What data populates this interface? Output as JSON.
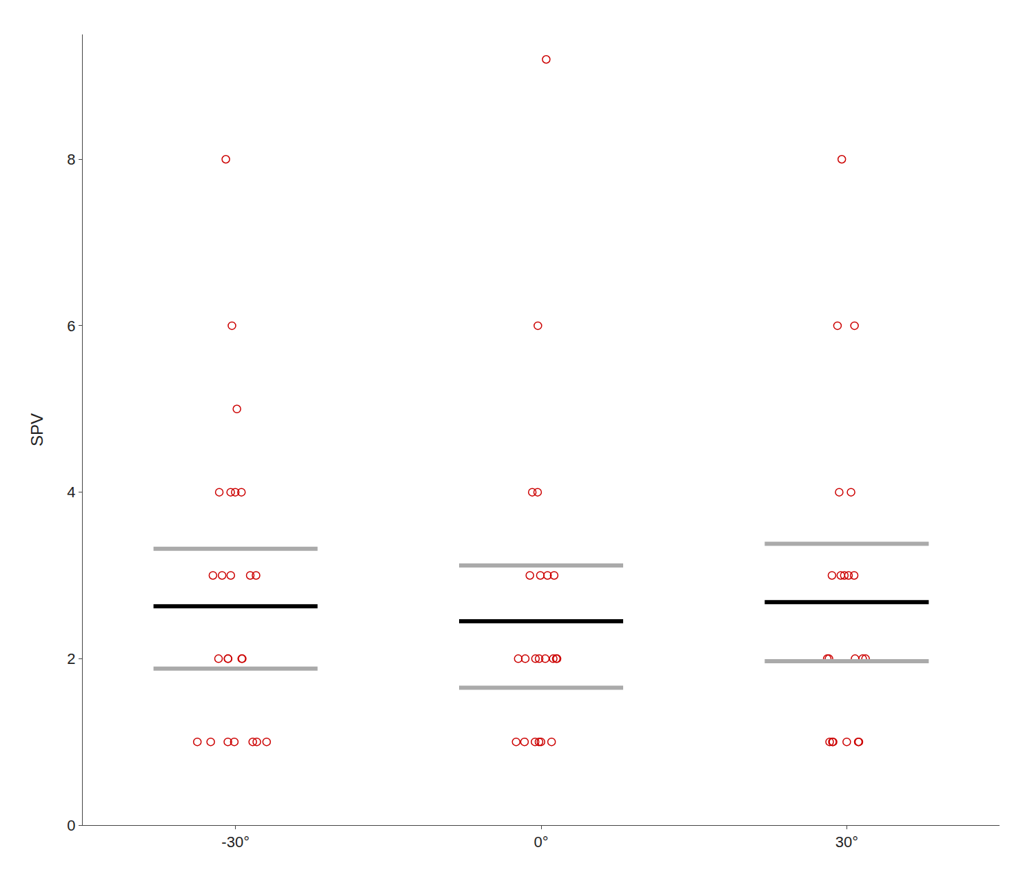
{
  "chart_data": {
    "type": "strip",
    "ylabel": "SPV",
    "categories": [
      "-30°",
      "0°",
      "30°"
    ],
    "series": [
      {
        "type": "strip",
        "color": "#cc0000",
        "marker": "circle-open",
        "values": [
          [
            8.0,
            4.0,
            6.0,
            5.0,
            4.0,
            4.0,
            4.0,
            3.0,
            3.0,
            3.0,
            3.0,
            3.0,
            2.0,
            2.0,
            2.0,
            2.0,
            2.0,
            1.0,
            1.0,
            1.0,
            1.0,
            1.0,
            1.0,
            1.0
          ],
          [
            9.2,
            6.0,
            4.0,
            4.0,
            3.0,
            3.0,
            3.0,
            3.0,
            2.0,
            2.0,
            2.0,
            2.0,
            2.0,
            2.0,
            2.0,
            2.0,
            1.0,
            1.0,
            1.0,
            1.0,
            1.0,
            1.0
          ],
          [
            8.0,
            6.0,
            6.0,
            4.0,
            4.0,
            3.0,
            3.0,
            3.0,
            3.0,
            3.0,
            2.0,
            2.0,
            2.0,
            2.0,
            2.0,
            1.0,
            1.0,
            1.0,
            1.0,
            1.0,
            1.0
          ]
        ]
      },
      {
        "type": "tick",
        "color": "#aaaaaa",
        "marker": "line-ew",
        "values": [
          3.32,
          3.12,
          3.38
        ]
      },
      {
        "type": "tick",
        "color": "#aaaaaa",
        "marker": "line-ew",
        "values": [
          1.88,
          1.65,
          1.97
        ]
      },
      {
        "type": "tick",
        "color": "#000000",
        "marker": "line-ew",
        "values": [
          2.63,
          2.45,
          2.68
        ]
      }
    ],
    "ylim": [
      0,
      9.5
    ],
    "yticks": [
      0,
      2,
      4,
      6,
      8
    ],
    "grid": false
  }
}
